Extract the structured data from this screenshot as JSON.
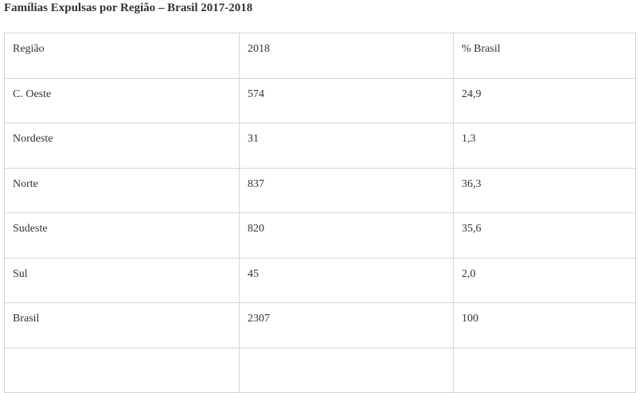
{
  "title": "Famílias Expulsas por Região – Brasil 2017-2018",
  "table": {
    "header": [
      "Região",
      "2018",
      "% Brasil"
    ],
    "rows": [
      [
        "C. Oeste",
        "574",
        "24,9"
      ],
      [
        "Nordeste",
        "31",
        "1,3"
      ],
      [
        "Norte",
        "837",
        "36,3"
      ],
      [
        "Sudeste",
        "820",
        "35,6"
      ],
      [
        "Sul",
        "45",
        "2,0"
      ],
      [
        "Brasil",
        "2307",
        "100"
      ]
    ]
  }
}
